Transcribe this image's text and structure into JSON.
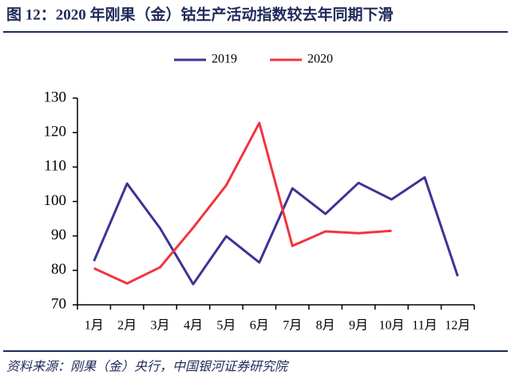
{
  "chart_data": {
    "type": "line",
    "title": "图 12：2020 年刚果（金）钴生产活动指数较去年同期下滑",
    "source": "资料来源：刚果（金）央行，中国银河证券研究院",
    "categories": [
      "1月",
      "2月",
      "3月",
      "4月",
      "5月",
      "6月",
      "7月",
      "8月",
      "9月",
      "10月",
      "11月",
      "12月"
    ],
    "series": [
      {
        "name": "2019",
        "color": "#3d3494",
        "values": [
          82.7,
          105.2,
          92.2,
          76,
          89.9,
          82.3,
          103.8,
          96.4,
          105.4,
          100.6,
          107,
          78.3
        ]
      },
      {
        "name": "2020",
        "color": "#f0353f",
        "values": [
          80.6,
          76.2,
          80.9,
          92.4,
          104.7,
          122.8,
          87.1,
          91.3,
          90.8,
          91.5,
          null,
          null
        ]
      }
    ],
    "ylim": [
      70,
      130
    ],
    "yticks": [
      70,
      80,
      90,
      100,
      110,
      120,
      130
    ],
    "grid": false,
    "legend": "top"
  }
}
